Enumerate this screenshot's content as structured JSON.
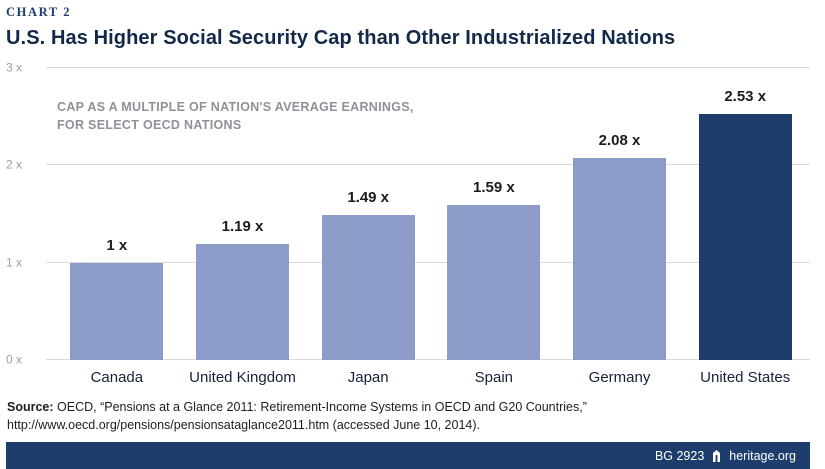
{
  "page": {
    "kicker": "CHART 2",
    "title": "U.S. Has Higher Social Security Cap than Other Industrialized Nations",
    "annotation_line1": "CAP AS A MULTIPLE OF NATION'S AVERAGE EARNINGS,",
    "annotation_line2": "FOR SELECT OECD NATIONS"
  },
  "chart_data": {
    "type": "bar",
    "title": "U.S. Has Higher Social Security Cap than Other Industrialized Nations",
    "categories": [
      "Canada",
      "United Kingdom",
      "Japan",
      "Spain",
      "Germany",
      "United States"
    ],
    "values": [
      1,
      1.19,
      1.49,
      1.59,
      2.08,
      2.53
    ],
    "value_labels": [
      "1 x",
      "1.19 x",
      "1.49 x",
      "1.59 x",
      "2.08 x",
      "2.53 x"
    ],
    "xlabel": "",
    "ylabel": "",
    "ylim": [
      0,
      3
    ],
    "ytick_labels": [
      "0 x",
      "1 x",
      "2 x",
      "3 x"
    ],
    "grid": true,
    "legend": "none",
    "bar_color": "#8d9cc8",
    "highlight_color": "#1d3e6d",
    "highlight_index": 5
  },
  "source": {
    "label": "Source:",
    "text": " OECD, “Pensions at a Glance 2011: Retirement-Income Systems in OECD and G20 Countries,”",
    "line2": "http://www.oecd.org/pensions/pensionsataglance2011.htm (accessed June 10, 2014)."
  },
  "footer": {
    "report_id": "BG 2923",
    "brand": "heritage.org"
  }
}
